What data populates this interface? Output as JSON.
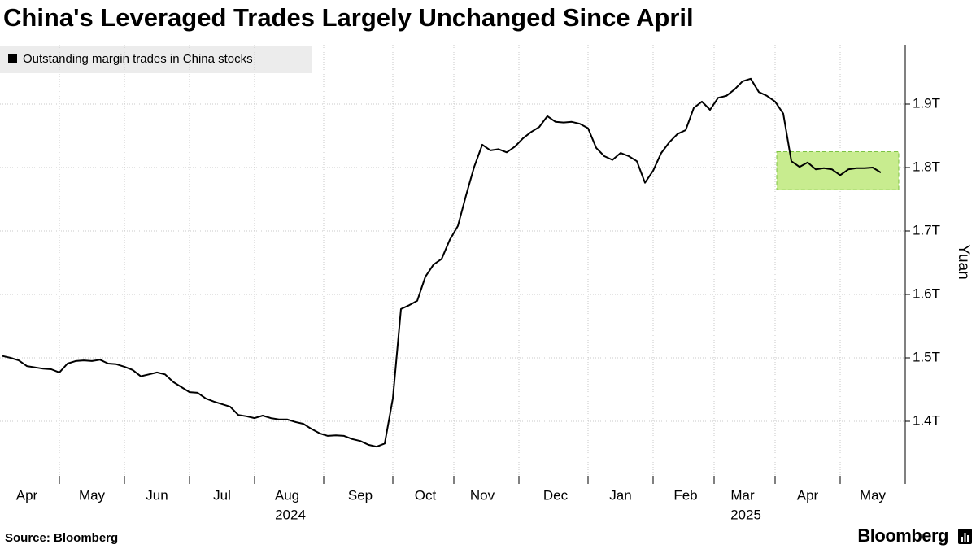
{
  "chart_data": {
    "type": "line",
    "title": "China's Leveraged Trades Largely Unchanged Since April",
    "y_label": "Yuan",
    "source": "Source: Bloomberg",
    "brand": "Bloomberg",
    "categories": [
      null,
      null,
      null,
      "Apr",
      null,
      null,
      null,
      null,
      null,
      null,
      null,
      "May",
      null,
      null,
      null,
      null,
      null,
      null,
      null,
      "Jun",
      null,
      null,
      null,
      null,
      null,
      null,
      null,
      "Jul",
      null,
      null,
      null,
      null,
      null,
      null,
      null,
      "Aug",
      null,
      null,
      null,
      null,
      null,
      null,
      null,
      null,
      "Sep",
      null,
      null,
      null,
      null,
      null,
      null,
      null,
      "Oct",
      null,
      null,
      null,
      null,
      null,
      null,
      "Nov",
      null,
      null,
      null,
      null,
      null,
      null,
      null,
      null,
      "Dec",
      null,
      null,
      null,
      null,
      null,
      null,
      null,
      "Jan",
      null,
      null,
      null,
      null,
      null,
      null,
      null,
      "Feb",
      null,
      null,
      null,
      null,
      null,
      null,
      "Mar",
      null,
      null,
      null,
      null,
      null,
      null,
      null,
      "Apr",
      null,
      null,
      null,
      null,
      null,
      null,
      null,
      "May",
      null
    ],
    "years": [
      {
        "label": "2024",
        "month": "Aug"
      },
      {
        "label": "2025",
        "month": "Mar"
      }
    ],
    "series": [
      {
        "name": "Outstanding margin trades in China stocks",
        "color": "#000000",
        "values": [
          1.503,
          1.5,
          1.496,
          1.487,
          1.485,
          1.483,
          1.482,
          1.477,
          1.491,
          1.495,
          1.496,
          1.495,
          1.497,
          1.491,
          1.49,
          1.486,
          1.481,
          1.471,
          1.474,
          1.477,
          1.474,
          1.462,
          1.454,
          1.446,
          1.445,
          1.436,
          1.431,
          1.427,
          1.423,
          1.41,
          1.408,
          1.405,
          1.409,
          1.405,
          1.403,
          1.403,
          1.399,
          1.396,
          1.388,
          1.381,
          1.377,
          1.378,
          1.377,
          1.372,
          1.369,
          1.363,
          1.36,
          1.365,
          1.436,
          1.577,
          1.583,
          1.59,
          1.628,
          1.647,
          1.656,
          1.686,
          1.708,
          1.756,
          1.801,
          1.836,
          1.827,
          1.829,
          1.824,
          1.833,
          1.846,
          1.856,
          1.864,
          1.881,
          1.872,
          1.871,
          1.872,
          1.869,
          1.862,
          1.831,
          1.818,
          1.812,
          1.823,
          1.818,
          1.81,
          1.776,
          1.795,
          1.823,
          1.84,
          1.853,
          1.859,
          1.894,
          1.904,
          1.891,
          1.91,
          1.913,
          1.923,
          1.936,
          1.94,
          1.919,
          1.913,
          1.904,
          1.885,
          1.81,
          1.801,
          1.808,
          1.797,
          1.799,
          1.797,
          1.788,
          1.797,
          1.799,
          1.799,
          1.8,
          1.792
        ]
      }
    ],
    "highlight": {
      "start": 95,
      "end": 108,
      "low": 1.765,
      "high": 1.825,
      "color": "#c8ec8f",
      "border": "#7cc242"
    },
    "ylim": [
      1.3,
      2.0
    ],
    "yticks": [
      {
        "value": 1.4,
        "label": "1.4T"
      },
      {
        "value": 1.5,
        "label": "1.5T"
      },
      {
        "value": 1.6,
        "label": "1.6T"
      },
      {
        "value": 1.7,
        "label": "1.7T"
      },
      {
        "value": 1.8,
        "label": "1.8T"
      },
      {
        "value": 1.9,
        "label": "1.9T"
      }
    ],
    "grid": true
  }
}
